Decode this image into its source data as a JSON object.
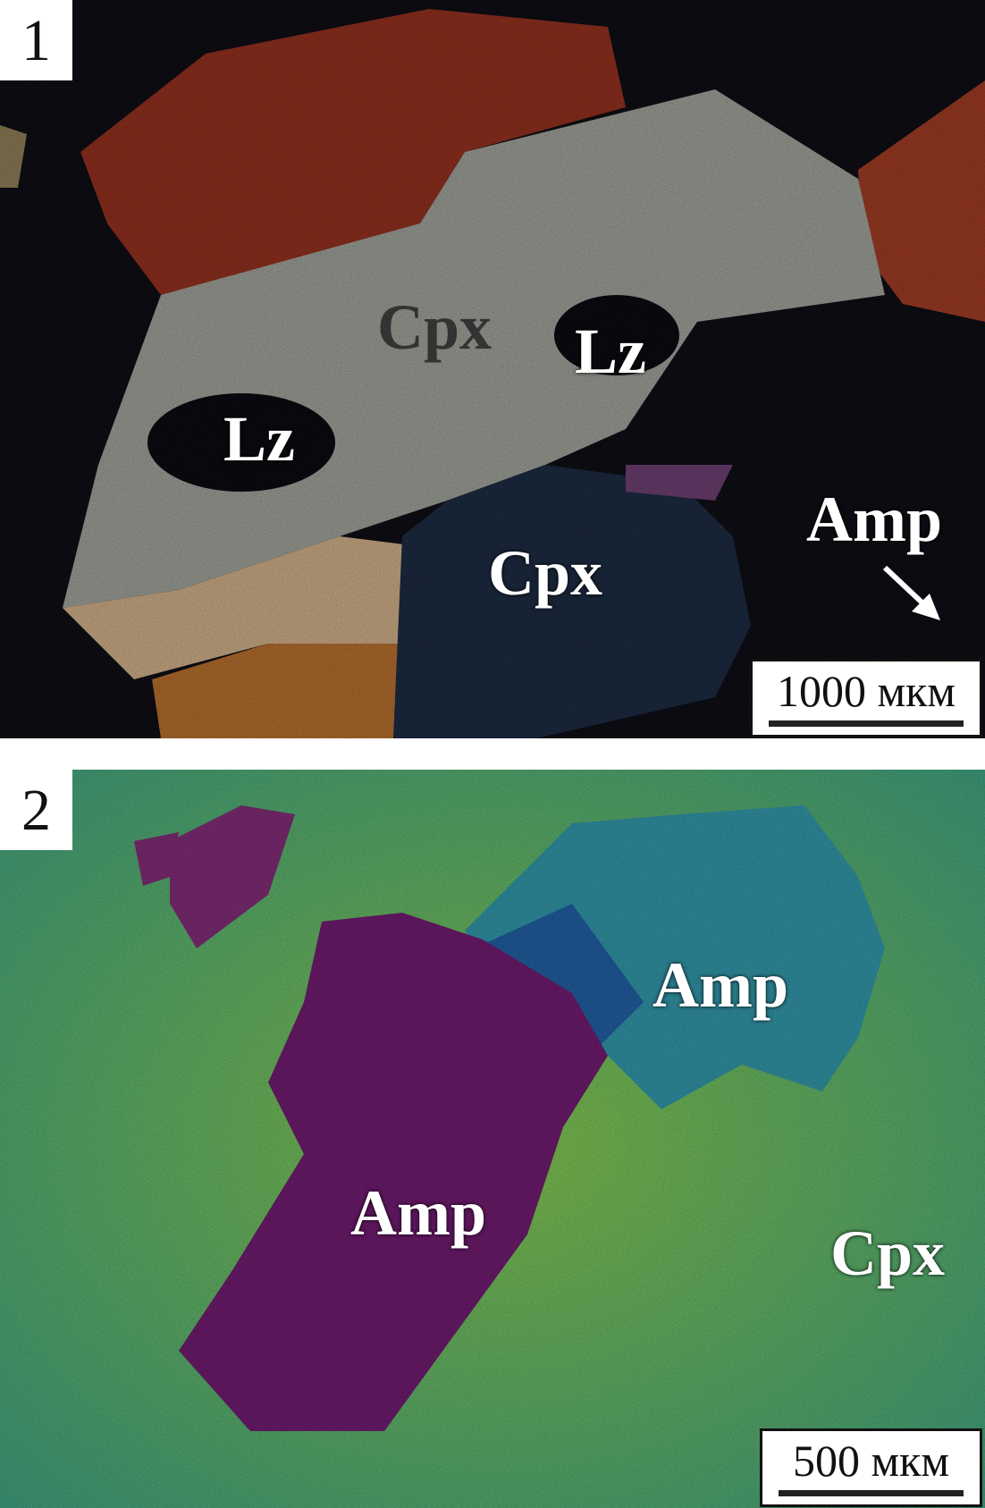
{
  "panels": [
    {
      "number": "1",
      "labels": [
        "Cpx",
        "Lz",
        "Lz",
        "Cpx",
        "Amp"
      ],
      "scale_bar": "1000 мкм",
      "icons": [
        "arrow-icon"
      ]
    },
    {
      "number": "2",
      "labels": [
        "Amp",
        "Amp",
        "Cpx"
      ],
      "scale_bar": "500 мкм"
    }
  ]
}
